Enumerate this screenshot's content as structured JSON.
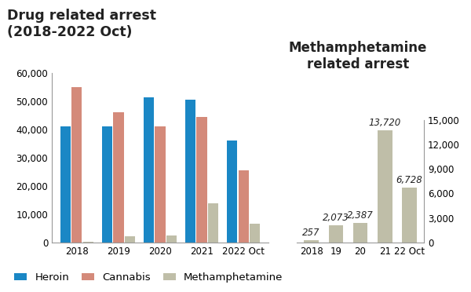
{
  "chart_data": [
    {
      "type": "bar",
      "title": "Drug related arrest\n(2018-2022 Oct)",
      "categories": [
        "2018",
        "2019",
        "2020",
        "2021",
        "2022 Oct"
      ],
      "series": [
        {
          "name": "Heroin",
          "color": "#1a87c5",
          "values": [
            41000,
            41000,
            51500,
            50500,
            36000
          ]
        },
        {
          "name": "Cannabis",
          "color": "#d48a7a",
          "values": [
            55000,
            46000,
            41000,
            44500,
            25500
          ]
        },
        {
          "name": "Methamphetamine",
          "color": "#bfbea8",
          "values": [
            257,
            2073,
            2387,
            13720,
            6728
          ]
        }
      ],
      "ylim": [
        0,
        60000
      ],
      "yticks": [
        0,
        {
          "value": 10000,
          "label": "10,000"
        },
        {
          "value": 20000,
          "label": "20,000"
        },
        {
          "value": 30000,
          "label": "30,000"
        },
        {
          "value": 40000,
          "label": "40,000"
        },
        {
          "value": 50000,
          "label": "50,000"
        },
        {
          "value": 60000,
          "label": "60,000"
        }
      ],
      "legend": "lower left"
    },
    {
      "type": "bar",
      "title": "Methamphetamine\nrelated arrest",
      "categories": [
        "2018",
        "19",
        "20",
        "21",
        "22 Oct"
      ],
      "values": [
        257,
        2073,
        2387,
        13720,
        6728
      ],
      "value_labels": [
        "257",
        "2,073",
        "2,387",
        "13,720",
        "6,728"
      ],
      "data_labels": true,
      "color": "#bfbea8",
      "ylim": [
        0,
        15000
      ],
      "yticks": [
        0,
        {
          "value": 3000,
          "label": "3,000"
        },
        {
          "value": 6000,
          "label": "6,000"
        },
        {
          "value": 9000,
          "label": "9,000"
        },
        {
          "value": 12000,
          "label": "12,000"
        },
        {
          "value": 15000,
          "label": "15,000"
        }
      ]
    }
  ]
}
